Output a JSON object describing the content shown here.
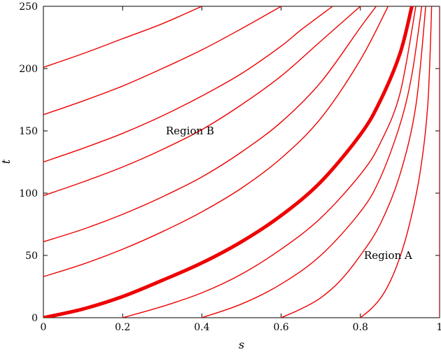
{
  "chart_data": {
    "type": "line",
    "title": "",
    "xlabel": "s",
    "ylabel": "t",
    "xlim": [
      0,
      1
    ],
    "ylim": [
      0,
      250
    ],
    "xticks": [
      "0",
      "0.2",
      "0.4",
      "0.6",
      "0.8",
      "1"
    ],
    "yticks": [
      "0",
      "50",
      "100",
      "150",
      "200",
      "250"
    ],
    "grid": false,
    "legend": "none",
    "line_color": "#ee0000",
    "annotations": [
      {
        "text": "Region B",
        "x": 0.37,
        "y": 150
      },
      {
        "text": "Region A",
        "x": 0.87,
        "y": 50
      }
    ],
    "series": [
      {
        "emphasis": false,
        "x": [
          0,
          0.1,
          0.2,
          0.3,
          0.4
        ],
        "y": [
          201,
          212,
          224,
          236,
          250
        ]
      },
      {
        "emphasis": false,
        "x": [
          0,
          0.1,
          0.2,
          0.3,
          0.4,
          0.5,
          0.6
        ],
        "y": [
          163,
          174,
          186,
          200,
          215,
          232,
          250
        ]
      },
      {
        "emphasis": false,
        "x": [
          0,
          0.1,
          0.2,
          0.3,
          0.4,
          0.5,
          0.6,
          0.65,
          0.73
        ],
        "y": [
          125,
          136,
          148,
          162,
          178,
          196,
          218,
          231,
          250
        ]
      },
      {
        "emphasis": false,
        "x": [
          0,
          0.1,
          0.2,
          0.3,
          0.4,
          0.5,
          0.6,
          0.7,
          0.8
        ],
        "y": [
          98,
          109,
          121,
          135,
          151,
          171,
          194,
          222,
          250
        ]
      },
      {
        "emphasis": false,
        "x": [
          0,
          0.1,
          0.2,
          0.3,
          0.4,
          0.5,
          0.6,
          0.7,
          0.8,
          0.84
        ],
        "y": [
          61,
          71,
          83,
          97,
          113,
          133,
          157,
          189,
          233,
          250
        ]
      },
      {
        "emphasis": false,
        "x": [
          0,
          0.1,
          0.2,
          0.3,
          0.4,
          0.5,
          0.6,
          0.7,
          0.8,
          0.87
        ],
        "y": [
          33,
          43,
          55,
          69,
          85,
          104,
          128,
          160,
          207,
          250
        ]
      },
      {
        "emphasis": true,
        "x": [
          0,
          0.1,
          0.2,
          0.3,
          0.4,
          0.5,
          0.6,
          0.7,
          0.8,
          0.85,
          0.9,
          0.93
        ],
        "y": [
          0,
          7,
          17,
          30,
          44,
          61,
          82,
          109,
          147,
          174,
          212,
          250
        ]
      },
      {
        "emphasis": false,
        "x": [
          0.2,
          0.3,
          0.4,
          0.5,
          0.6,
          0.7,
          0.8,
          0.85,
          0.9,
          0.94
        ],
        "y": [
          0,
          9,
          20,
          35,
          55,
          80,
          115,
          140,
          180,
          250
        ]
      },
      {
        "emphasis": false,
        "x": [
          0.4,
          0.5,
          0.6,
          0.7,
          0.8,
          0.85,
          0.9,
          0.93,
          0.955
        ],
        "y": [
          0,
          11,
          27,
          50,
          85,
          112,
          155,
          195,
          250
        ]
      },
      {
        "emphasis": false,
        "x": [
          0.6,
          0.65,
          0.7,
          0.75,
          0.8,
          0.85,
          0.9,
          0.94,
          0.965
        ],
        "y": [
          0,
          7,
          16,
          30,
          50,
          75,
          115,
          170,
          250
        ]
      },
      {
        "emphasis": false,
        "x": [
          0.8,
          0.83,
          0.86,
          0.89,
          0.92,
          0.95,
          0.97,
          0.98
        ],
        "y": [
          0,
          8,
          20,
          40,
          70,
          115,
          170,
          250
        ]
      },
      {
        "emphasis": false,
        "x": [
          1,
          1
        ],
        "y": [
          0,
          250
        ]
      }
    ]
  }
}
